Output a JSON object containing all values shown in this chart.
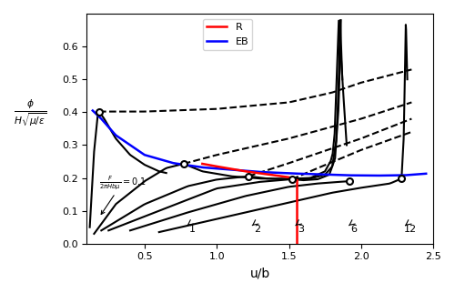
{
  "xlim": [
    0.1,
    2.5
  ],
  "ylim": [
    0.0,
    0.7
  ],
  "xlabel": "u/b",
  "ylabel": "$\\frac{\\phi}{H\\sqrt{\\mu/\\epsilon}}$",
  "xticks": [
    0.5,
    1.0,
    1.5,
    2.0,
    2.5
  ],
  "yticks": [
    0.0,
    0.1,
    0.2,
    0.3,
    0.4,
    0.5,
    0.6
  ],
  "force_label": "$\\frac{F}{2\\pi H b\\mu} = 0.1$",
  "force_numbers": [
    "1",
    "2",
    "3",
    "6",
    "12"
  ],
  "legend_R": "R",
  "legend_EB": "EB",
  "color_R": "red",
  "color_EB": "blue",
  "color_curve": "black",
  "background_color": "white"
}
